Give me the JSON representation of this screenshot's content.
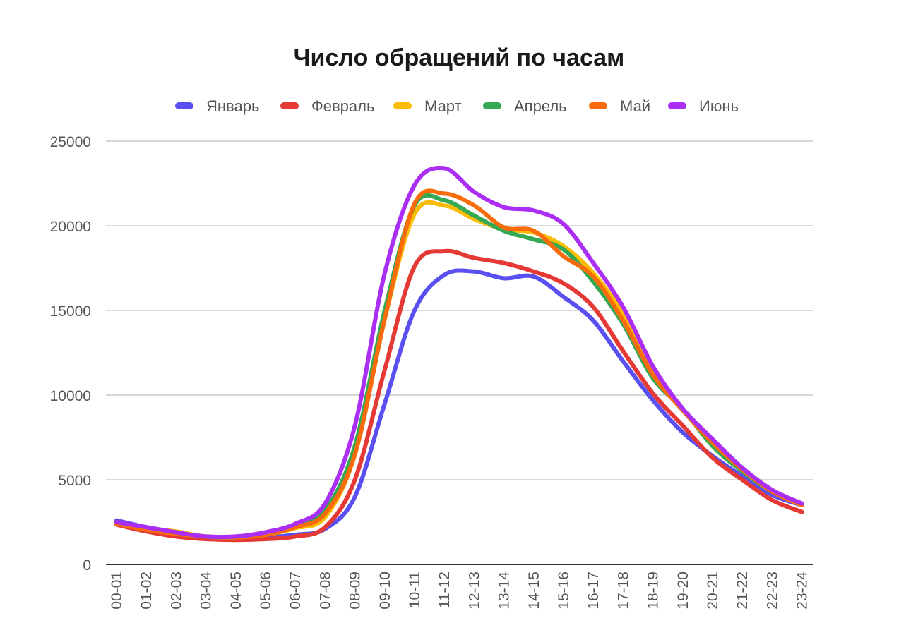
{
  "chart_data": {
    "type": "line",
    "title": "Число обращений по часам",
    "xlabel": "",
    "ylabel": "",
    "ylim": [
      0,
      25000
    ],
    "yticks": [
      "0",
      "5000",
      "10000",
      "15000",
      "20000",
      "25000"
    ],
    "grid": true,
    "legend_position": "top",
    "categories": [
      "00-01",
      "01-02",
      "02-03",
      "03-04",
      "04-05",
      "05-06",
      "06-07",
      "07-08",
      "08-09",
      "09-10",
      "10-11",
      "11-12",
      "12-13",
      "13-14",
      "14-15",
      "15-16",
      "16-17",
      "17-18",
      "18-19",
      "19-20",
      "20-21",
      "21-22",
      "22-23",
      "23-24"
    ],
    "series": [
      {
        "name": "Январь",
        "color": "#5a4ff0",
        "values": [
          2600,
          2200,
          1850,
          1600,
          1550,
          1600,
          1750,
          2100,
          4000,
          9500,
          15000,
          17100,
          17300,
          16900,
          17000,
          15800,
          14400,
          12000,
          9700,
          7800,
          6400,
          5200,
          4100,
          3500
        ]
      },
      {
        "name": "Февраль",
        "color": "#e53935",
        "values": [
          2350,
          1950,
          1650,
          1500,
          1450,
          1500,
          1650,
          2200,
          5000,
          11500,
          17600,
          18500,
          18100,
          17800,
          17300,
          16600,
          15200,
          12600,
          10100,
          8200,
          6300,
          5000,
          3800,
          3100
        ]
      },
      {
        "name": "Март",
        "color": "#fbbc04",
        "values": [
          2450,
          2150,
          1950,
          1650,
          1600,
          1750,
          2150,
          2800,
          6500,
          14500,
          20700,
          21200,
          20400,
          19800,
          19600,
          18800,
          17200,
          14800,
          11300,
          9200,
          7000,
          5500,
          4300,
          3500
        ]
      },
      {
        "name": "Апрель",
        "color": "#34a853",
        "values": [
          2500,
          2150,
          1850,
          1650,
          1600,
          1800,
          2300,
          3200,
          7000,
          15000,
          21200,
          21500,
          20600,
          19700,
          19200,
          18600,
          16700,
          14200,
          11000,
          9200,
          7000,
          5500,
          4300,
          3500
        ]
      },
      {
        "name": "Май",
        "color": "#fa6b0c",
        "values": [
          2400,
          2050,
          1800,
          1650,
          1600,
          1750,
          2200,
          3000,
          6500,
          14500,
          21300,
          21900,
          21200,
          19900,
          19700,
          18200,
          17000,
          14400,
          11200,
          9100,
          7200,
          5600,
          4300,
          3500
        ]
      },
      {
        "name": "Июнь",
        "color": "#ab2ef5",
        "values": [
          2500,
          2200,
          1900,
          1650,
          1650,
          1900,
          2400,
          3600,
          8200,
          17200,
          22400,
          23400,
          22000,
          21100,
          20900,
          20100,
          17800,
          15200,
          11700,
          9200,
          7400,
          5700,
          4400,
          3600
        ]
      }
    ]
  }
}
